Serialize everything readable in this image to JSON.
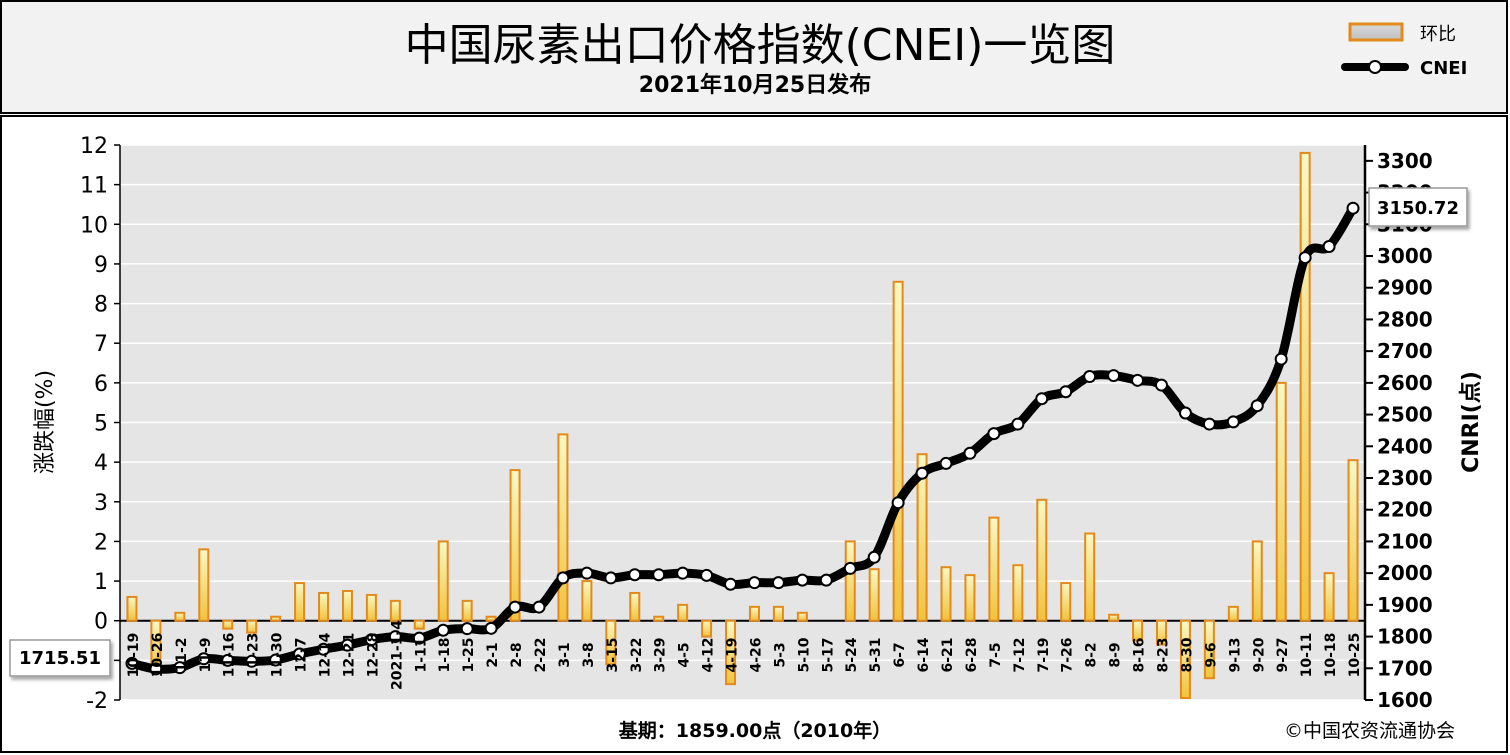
{
  "header": {
    "title": "中国尿素出口价格指数(CNEI)一览图",
    "subtitle": "2021年10月25日发布"
  },
  "legend": {
    "bar_label": "环比",
    "line_label": "CNEI"
  },
  "footer": {
    "base_note": "基期：1859.00点（2010年）",
    "copyright": "©中国农资流通协会"
  },
  "annotations": {
    "start_value": "1715.51",
    "end_value": "3150.72"
  },
  "colors": {
    "bar_fill_top": "#f5f5ae",
    "bar_fill_bottom": "#f0c040",
    "bar_stroke": "#e38a1c",
    "line": "#000000",
    "plot_bg": "#e5e5e5",
    "grid": "#ffffff"
  },
  "chart_data": {
    "type": "bar",
    "xlabel": "",
    "ylabel": "涨跌幅(%)",
    "y2label": "CNRI(点)",
    "ylim": [
      -2,
      12
    ],
    "y2lim": [
      1600,
      3350
    ],
    "yticks": [
      -2,
      -1,
      0,
      1,
      2,
      3,
      4,
      5,
      6,
      7,
      8,
      9,
      10,
      11,
      12
    ],
    "y2ticks": [
      1600,
      1700,
      1800,
      1900,
      2000,
      2100,
      2200,
      2300,
      2400,
      2500,
      2600,
      2700,
      2800,
      2900,
      3000,
      3100,
      3200,
      3300
    ],
    "grid": true,
    "legend_position": "top-right",
    "categories": [
      "10-19",
      "10-26",
      "11-2",
      "11-9",
      "11-16",
      "11-23",
      "11-30",
      "12-7",
      "12-14",
      "12-21",
      "12-28",
      "2021-1-4",
      "1-11",
      "1-18",
      "1-25",
      "2-1",
      "2-8",
      "2-22",
      "3-1",
      "3-8",
      "3-15",
      "3-22",
      "3-29",
      "4-5",
      "4-12",
      "4-19",
      "4-26",
      "5-3",
      "5-10",
      "5-17",
      "5-24",
      "5-31",
      "6-7",
      "6-14",
      "6-21",
      "6-28",
      "7-5",
      "7-12",
      "7-19",
      "7-26",
      "8-2",
      "8-9",
      "8-16",
      "8-23",
      "8-30",
      "9-6",
      "9-13",
      "9-20",
      "9-27",
      "10-11",
      "10-18",
      "10-25"
    ],
    "series": [
      {
        "name": "环比",
        "type": "bar",
        "values": [
          0.6,
          -1.3,
          0.2,
          1.8,
          -0.2,
          -0.3,
          0.1,
          0.95,
          0.7,
          0.75,
          0.65,
          0.5,
          -0.2,
          2.0,
          0.5,
          0.1,
          3.8,
          0.0,
          4.7,
          1.0,
          -1.1,
          0.7,
          0.1,
          0.4,
          -0.4,
          -1.6,
          0.35,
          0.35,
          0.2,
          0.0,
          2.0,
          1.3,
          8.55,
          4.2,
          1.35,
          1.15,
          2.6,
          1.4,
          3.05,
          0.95,
          2.2,
          0.15,
          -0.5,
          -0.6,
          -1.95,
          -1.45,
          0.35,
          2.0,
          6.0,
          11.8,
          1.2,
          4.05
        ]
      },
      {
        "name": "CNEI",
        "type": "line",
        "axis": "right",
        "values": [
          1715.51,
          1698,
          1702,
          1730,
          1725,
          1722,
          1726,
          1745,
          1760,
          1773,
          1790,
          1800,
          1795,
          1820,
          1825,
          1826,
          1893,
          1893,
          1985,
          2000,
          1985,
          1995,
          1995,
          2000,
          1993,
          1965,
          1970,
          1970,
          1978,
          1978,
          2015,
          2050,
          2222,
          2315,
          2346,
          2378,
          2440,
          2470,
          2550,
          2572,
          2620,
          2623,
          2608,
          2593,
          2505,
          2470,
          2477,
          2528,
          2675,
          2995,
          3030,
          3150.72
        ]
      }
    ]
  }
}
